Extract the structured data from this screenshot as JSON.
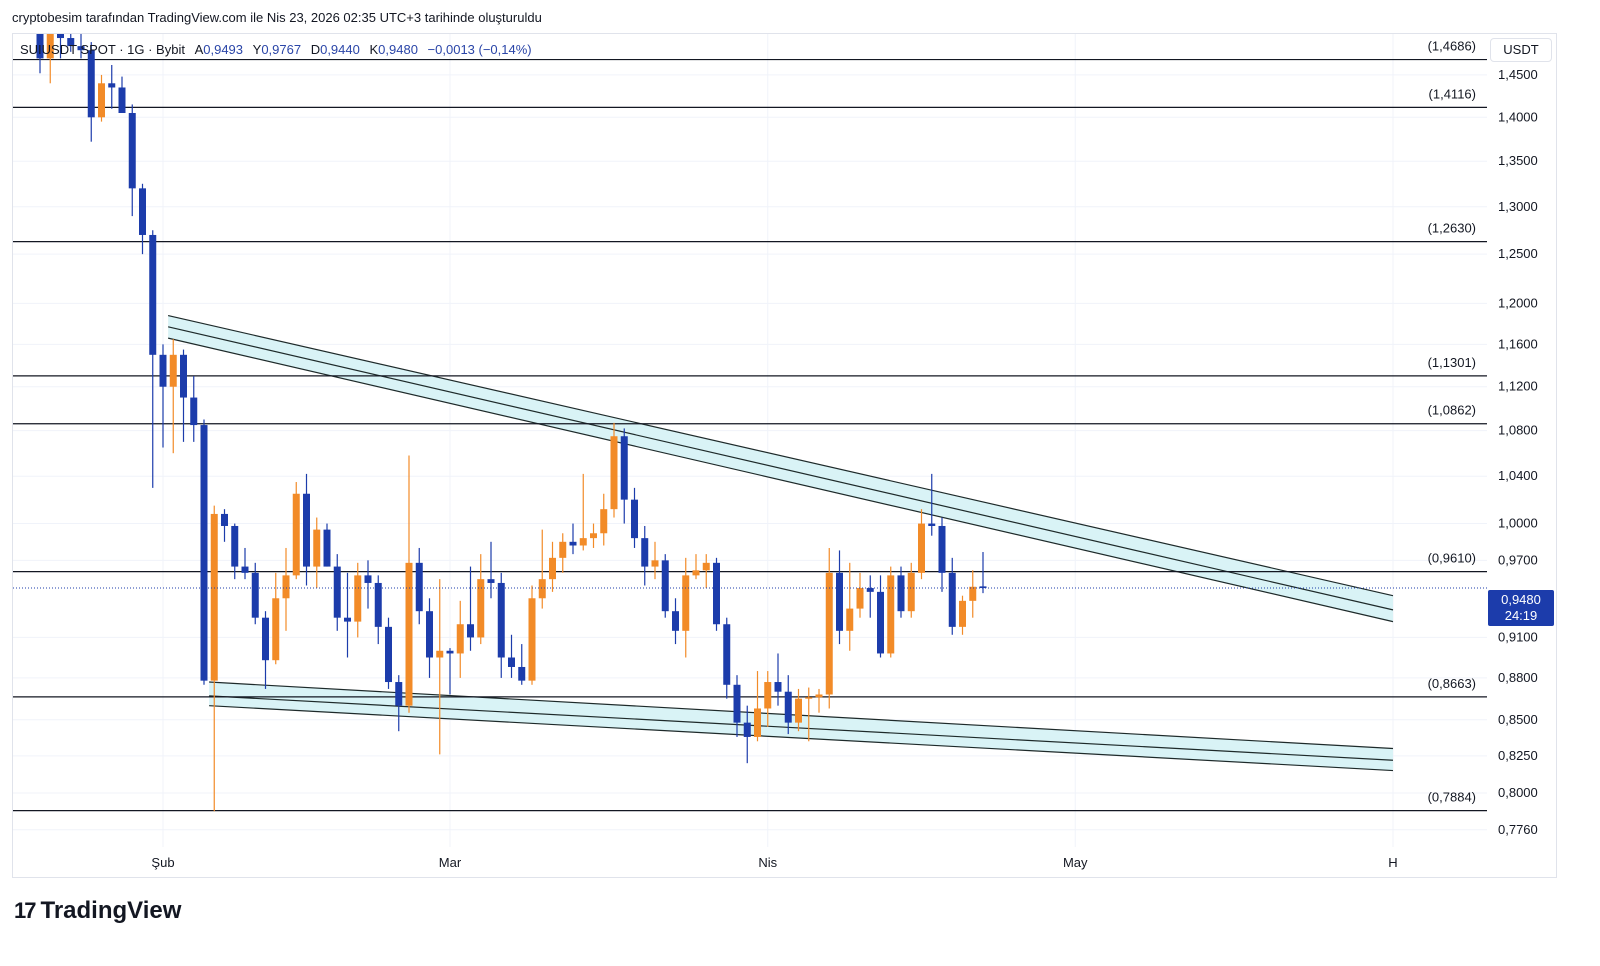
{
  "credit": "cryptobesim tarafından TradingView.com ile Nis 23, 2026 02:35 UTC+3 tarihinde oluşturuldu",
  "legend": {
    "symbol": "SUIUSDT SPOT · 1G · Bybit",
    "open_label": "A",
    "open": "0,9493",
    "high_label": "Y",
    "high": "0,9767",
    "low_label": "D",
    "low": "0,9440",
    "close_label": "K",
    "close": "0,9480",
    "change": "−0,0013 (−0,14%)"
  },
  "currency": "USDT",
  "current_price": {
    "value": "0,9480",
    "countdown": "24:19"
  },
  "logo_text": "TradingView",
  "colors": {
    "up": "#f28b28",
    "down": "#1c3cab",
    "channel_fill": "#d9f3f6",
    "grid": "#f0f3fa"
  },
  "chart_data": {
    "type": "candlestick",
    "title": "SUIUSDT SPOT · 1G · Bybit",
    "y_scale": "log",
    "ylim": [
      0.765,
      1.5
    ],
    "y_ticks": [
      {
        "v": 1.45,
        "label": "1,4500"
      },
      {
        "v": 1.4,
        "label": "1,4000"
      },
      {
        "v": 1.35,
        "label": "1,3500"
      },
      {
        "v": 1.3,
        "label": "1,3000"
      },
      {
        "v": 1.25,
        "label": "1,2500"
      },
      {
        "v": 1.2,
        "label": "1,2000"
      },
      {
        "v": 1.16,
        "label": "1,1600"
      },
      {
        "v": 1.12,
        "label": "1,1200"
      },
      {
        "v": 1.08,
        "label": "1,0800"
      },
      {
        "v": 1.04,
        "label": "1,0400"
      },
      {
        "v": 1.0,
        "label": "1,0000"
      },
      {
        "v": 0.97,
        "label": "0,9700"
      },
      {
        "v": 0.91,
        "label": "0,9100"
      },
      {
        "v": 0.88,
        "label": "0,8800"
      },
      {
        "v": 0.85,
        "label": "0,8500"
      },
      {
        "v": 0.825,
        "label": "0,8250"
      },
      {
        "v": 0.8,
        "label": "0,8000"
      },
      {
        "v": 0.776,
        "label": "0,7760"
      }
    ],
    "x_ticks": [
      {
        "day": 13,
        "label": "Şub"
      },
      {
        "day": 41,
        "label": "Mar"
      },
      {
        "day": 72,
        "label": "Nis"
      },
      {
        "day": 102,
        "label": "May"
      },
      {
        "day": 133,
        "label": "H"
      }
    ],
    "horizontal_levels": [
      {
        "v": 1.4686,
        "label": "(1,4686)"
      },
      {
        "v": 1.4116,
        "label": "(1,4116)"
      },
      {
        "v": 1.263,
        "label": "(1,2630)"
      },
      {
        "v": 1.1301,
        "label": "(1,1301)"
      },
      {
        "v": 1.0862,
        "label": "(1,0862)"
      },
      {
        "v": 0.961,
        "label": "(0,9610)"
      },
      {
        "v": 0.8663,
        "label": "(0,8663)"
      },
      {
        "v": 0.7884,
        "label": "(0,7884)"
      }
    ],
    "last_price": 0.948,
    "resistance_channel": {
      "x1": 13.5,
      "x2": 133,
      "upper": [
        1.188,
        0.942
      ],
      "middle": [
        1.177,
        0.931
      ],
      "lower": [
        1.166,
        0.922
      ]
    },
    "support_channel": {
      "x1": 17.5,
      "x2": 133,
      "upper": [
        0.877,
        0.83
      ],
      "middle": [
        0.867,
        0.822
      ],
      "lower": [
        0.86,
        0.815
      ]
    },
    "candles": [
      {
        "d": 1,
        "o": 1.55,
        "h": 1.58,
        "l": 1.452,
        "c": 1.47
      },
      {
        "d": 2,
        "o": 1.47,
        "h": 1.56,
        "l": 1.44,
        "c": 1.52
      },
      {
        "d": 3,
        "o": 1.52,
        "h": 1.56,
        "l": 1.47,
        "c": 1.495
      },
      {
        "d": 4,
        "o": 1.495,
        "h": 1.52,
        "l": 1.478,
        "c": 1.485
      },
      {
        "d": 5,
        "o": 1.485,
        "h": 1.5,
        "l": 1.47,
        "c": 1.48
      },
      {
        "d": 6,
        "o": 1.48,
        "h": 1.49,
        "l": 1.372,
        "c": 1.4
      },
      {
        "d": 7,
        "o": 1.4,
        "h": 1.45,
        "l": 1.395,
        "c": 1.44
      },
      {
        "d": 8,
        "o": 1.44,
        "h": 1.462,
        "l": 1.41,
        "c": 1.435
      },
      {
        "d": 9,
        "o": 1.435,
        "h": 1.448,
        "l": 1.41,
        "c": 1.405
      },
      {
        "d": 10,
        "o": 1.405,
        "h": 1.415,
        "l": 1.29,
        "c": 1.32
      },
      {
        "d": 11,
        "o": 1.32,
        "h": 1.325,
        "l": 1.25,
        "c": 1.27
      },
      {
        "d": 12,
        "o": 1.27,
        "h": 1.275,
        "l": 1.03,
        "c": 1.15
      },
      {
        "d": 13,
        "o": 1.15,
        "h": 1.16,
        "l": 1.065,
        "c": 1.12
      },
      {
        "d": 14,
        "o": 1.12,
        "h": 1.165,
        "l": 1.06,
        "c": 1.15
      },
      {
        "d": 15,
        "o": 1.15,
        "h": 1.155,
        "l": 1.07,
        "c": 1.11
      },
      {
        "d": 16,
        "o": 1.11,
        "h": 1.13,
        "l": 1.07,
        "c": 1.085
      },
      {
        "d": 17,
        "o": 1.085,
        "h": 1.09,
        "l": 0.875,
        "c": 0.878
      },
      {
        "d": 18,
        "o": 0.878,
        "h": 1.015,
        "l": 0.788,
        "c": 1.008
      },
      {
        "d": 19,
        "o": 1.008,
        "h": 1.012,
        "l": 0.985,
        "c": 0.998
      },
      {
        "d": 20,
        "o": 0.998,
        "h": 1.0,
        "l": 0.955,
        "c": 0.965
      },
      {
        "d": 21,
        "o": 0.965,
        "h": 0.98,
        "l": 0.955,
        "c": 0.96
      },
      {
        "d": 22,
        "o": 0.96,
        "h": 0.968,
        "l": 0.92,
        "c": 0.925
      },
      {
        "d": 23,
        "o": 0.925,
        "h": 0.93,
        "l": 0.872,
        "c": 0.893
      },
      {
        "d": 24,
        "o": 0.893,
        "h": 0.96,
        "l": 0.89,
        "c": 0.94
      },
      {
        "d": 25,
        "o": 0.94,
        "h": 0.98,
        "l": 0.915,
        "c": 0.958
      },
      {
        "d": 26,
        "o": 0.958,
        "h": 1.035,
        "l": 0.955,
        "c": 1.025
      },
      {
        "d": 27,
        "o": 1.025,
        "h": 1.042,
        "l": 0.95,
        "c": 0.965
      },
      {
        "d": 28,
        "o": 0.965,
        "h": 1.005,
        "l": 0.948,
        "c": 0.995
      },
      {
        "d": 29,
        "o": 0.995,
        "h": 1.0,
        "l": 0.965,
        "c": 0.965
      },
      {
        "d": 30,
        "o": 0.965,
        "h": 0.975,
        "l": 0.915,
        "c": 0.925
      },
      {
        "d": 31,
        "o": 0.925,
        "h": 0.96,
        "l": 0.895,
        "c": 0.922
      },
      {
        "d": 32,
        "o": 0.922,
        "h": 0.968,
        "l": 0.91,
        "c": 0.958
      },
      {
        "d": 33,
        "o": 0.958,
        "h": 0.97,
        "l": 0.932,
        "c": 0.952
      },
      {
        "d": 34,
        "o": 0.952,
        "h": 0.958,
        "l": 0.905,
        "c": 0.918
      },
      {
        "d": 35,
        "o": 0.918,
        "h": 0.925,
        "l": 0.872,
        "c": 0.877
      },
      {
        "d": 36,
        "o": 0.877,
        "h": 0.882,
        "l": 0.842,
        "c": 0.86
      },
      {
        "d": 37,
        "o": 0.86,
        "h": 1.058,
        "l": 0.855,
        "c": 0.968
      },
      {
        "d": 38,
        "o": 0.968,
        "h": 0.98,
        "l": 0.92,
        "c": 0.93
      },
      {
        "d": 39,
        "o": 0.93,
        "h": 0.94,
        "l": 0.88,
        "c": 0.895
      },
      {
        "d": 40,
        "o": 0.895,
        "h": 0.955,
        "l": 0.826,
        "c": 0.9
      },
      {
        "d": 41,
        "o": 0.9,
        "h": 0.902,
        "l": 0.868,
        "c": 0.898
      },
      {
        "d": 42,
        "o": 0.898,
        "h": 0.938,
        "l": 0.88,
        "c": 0.92
      },
      {
        "d": 43,
        "o": 0.92,
        "h": 0.965,
        "l": 0.9,
        "c": 0.91
      },
      {
        "d": 44,
        "o": 0.91,
        "h": 0.975,
        "l": 0.905,
        "c": 0.955
      },
      {
        "d": 45,
        "o": 0.955,
        "h": 0.985,
        "l": 0.94,
        "c": 0.952
      },
      {
        "d": 46,
        "o": 0.952,
        "h": 0.96,
        "l": 0.88,
        "c": 0.895
      },
      {
        "d": 47,
        "o": 0.895,
        "h": 0.912,
        "l": 0.88,
        "c": 0.888
      },
      {
        "d": 48,
        "o": 0.888,
        "h": 0.905,
        "l": 0.875,
        "c": 0.878
      },
      {
        "d": 49,
        "o": 0.878,
        "h": 0.95,
        "l": 0.875,
        "c": 0.94
      },
      {
        "d": 50,
        "o": 0.94,
        "h": 0.995,
        "l": 0.932,
        "c": 0.955
      },
      {
        "d": 51,
        "o": 0.955,
        "h": 0.985,
        "l": 0.945,
        "c": 0.972
      },
      {
        "d": 52,
        "o": 0.972,
        "h": 0.992,
        "l": 0.96,
        "c": 0.985
      },
      {
        "d": 53,
        "o": 0.985,
        "h": 1.0,
        "l": 0.975,
        "c": 0.982
      },
      {
        "d": 54,
        "o": 0.982,
        "h": 1.042,
        "l": 0.978,
        "c": 0.988
      },
      {
        "d": 55,
        "o": 0.988,
        "h": 1.0,
        "l": 0.98,
        "c": 0.992
      },
      {
        "d": 56,
        "o": 0.992,
        "h": 1.025,
        "l": 0.982,
        "c": 1.012
      },
      {
        "d": 57,
        "o": 1.012,
        "h": 1.087,
        "l": 1.005,
        "c": 1.075
      },
      {
        "d": 58,
        "o": 1.075,
        "h": 1.082,
        "l": 1.0,
        "c": 1.02
      },
      {
        "d": 59,
        "o": 1.02,
        "h": 1.03,
        "l": 0.98,
        "c": 0.988
      },
      {
        "d": 60,
        "o": 0.988,
        "h": 0.998,
        "l": 0.95,
        "c": 0.965
      },
      {
        "d": 61,
        "o": 0.965,
        "h": 0.985,
        "l": 0.955,
        "c": 0.97
      },
      {
        "d": 62,
        "o": 0.97,
        "h": 0.975,
        "l": 0.925,
        "c": 0.93
      },
      {
        "d": 63,
        "o": 0.93,
        "h": 0.94,
        "l": 0.905,
        "c": 0.915
      },
      {
        "d": 64,
        "o": 0.915,
        "h": 0.972,
        "l": 0.895,
        "c": 0.958
      },
      {
        "d": 65,
        "o": 0.958,
        "h": 0.975,
        "l": 0.955,
        "c": 0.962
      },
      {
        "d": 66,
        "o": 0.962,
        "h": 0.975,
        "l": 0.948,
        "c": 0.968
      },
      {
        "d": 67,
        "o": 0.968,
        "h": 0.972,
        "l": 0.915,
        "c": 0.92
      },
      {
        "d": 68,
        "o": 0.92,
        "h": 0.925,
        "l": 0.865,
        "c": 0.875
      },
      {
        "d": 69,
        "o": 0.875,
        "h": 0.882,
        "l": 0.838,
        "c": 0.848
      },
      {
        "d": 70,
        "o": 0.848,
        "h": 0.86,
        "l": 0.82,
        "c": 0.838
      },
      {
        "d": 71,
        "o": 0.838,
        "h": 0.885,
        "l": 0.835,
        "c": 0.858
      },
      {
        "d": 72,
        "o": 0.858,
        "h": 0.885,
        "l": 0.845,
        "c": 0.877
      },
      {
        "d": 73,
        "o": 0.877,
        "h": 0.898,
        "l": 0.86,
        "c": 0.87
      },
      {
        "d": 74,
        "o": 0.87,
        "h": 0.882,
        "l": 0.84,
        "c": 0.848
      },
      {
        "d": 75,
        "o": 0.848,
        "h": 0.872,
        "l": 0.842,
        "c": 0.865
      },
      {
        "d": 76,
        "o": 0.865,
        "h": 0.873,
        "l": 0.835,
        "c": 0.866
      },
      {
        "d": 77,
        "o": 0.866,
        "h": 0.872,
        "l": 0.855,
        "c": 0.868
      },
      {
        "d": 78,
        "o": 0.868,
        "h": 0.98,
        "l": 0.858,
        "c": 0.96
      },
      {
        "d": 79,
        "o": 0.96,
        "h": 0.978,
        "l": 0.905,
        "c": 0.915
      },
      {
        "d": 80,
        "o": 0.915,
        "h": 0.968,
        "l": 0.9,
        "c": 0.932
      },
      {
        "d": 81,
        "o": 0.932,
        "h": 0.96,
        "l": 0.925,
        "c": 0.948
      },
      {
        "d": 82,
        "o": 0.948,
        "h": 0.958,
        "l": 0.925,
        "c": 0.945
      },
      {
        "d": 83,
        "o": 0.945,
        "h": 0.958,
        "l": 0.895,
        "c": 0.898
      },
      {
        "d": 84,
        "o": 0.898,
        "h": 0.965,
        "l": 0.895,
        "c": 0.958
      },
      {
        "d": 85,
        "o": 0.958,
        "h": 0.965,
        "l": 0.925,
        "c": 0.93
      },
      {
        "d": 86,
        "o": 0.93,
        "h": 0.968,
        "l": 0.925,
        "c": 0.96
      },
      {
        "d": 87,
        "o": 0.96,
        "h": 1.012,
        "l": 0.955,
        "c": 1.0
      },
      {
        "d": 88,
        "o": 1.0,
        "h": 1.042,
        "l": 0.99,
        "c": 0.998
      },
      {
        "d": 89,
        "o": 0.998,
        "h": 1.005,
        "l": 0.945,
        "c": 0.96
      },
      {
        "d": 90,
        "o": 0.96,
        "h": 0.972,
        "l": 0.912,
        "c": 0.918
      },
      {
        "d": 91,
        "o": 0.918,
        "h": 0.942,
        "l": 0.912,
        "c": 0.938
      },
      {
        "d": 92,
        "o": 0.938,
        "h": 0.962,
        "l": 0.925,
        "c": 0.949
      },
      {
        "d": 93,
        "o": 0.9493,
        "h": 0.9767,
        "l": 0.944,
        "c": 0.948
      }
    ]
  }
}
